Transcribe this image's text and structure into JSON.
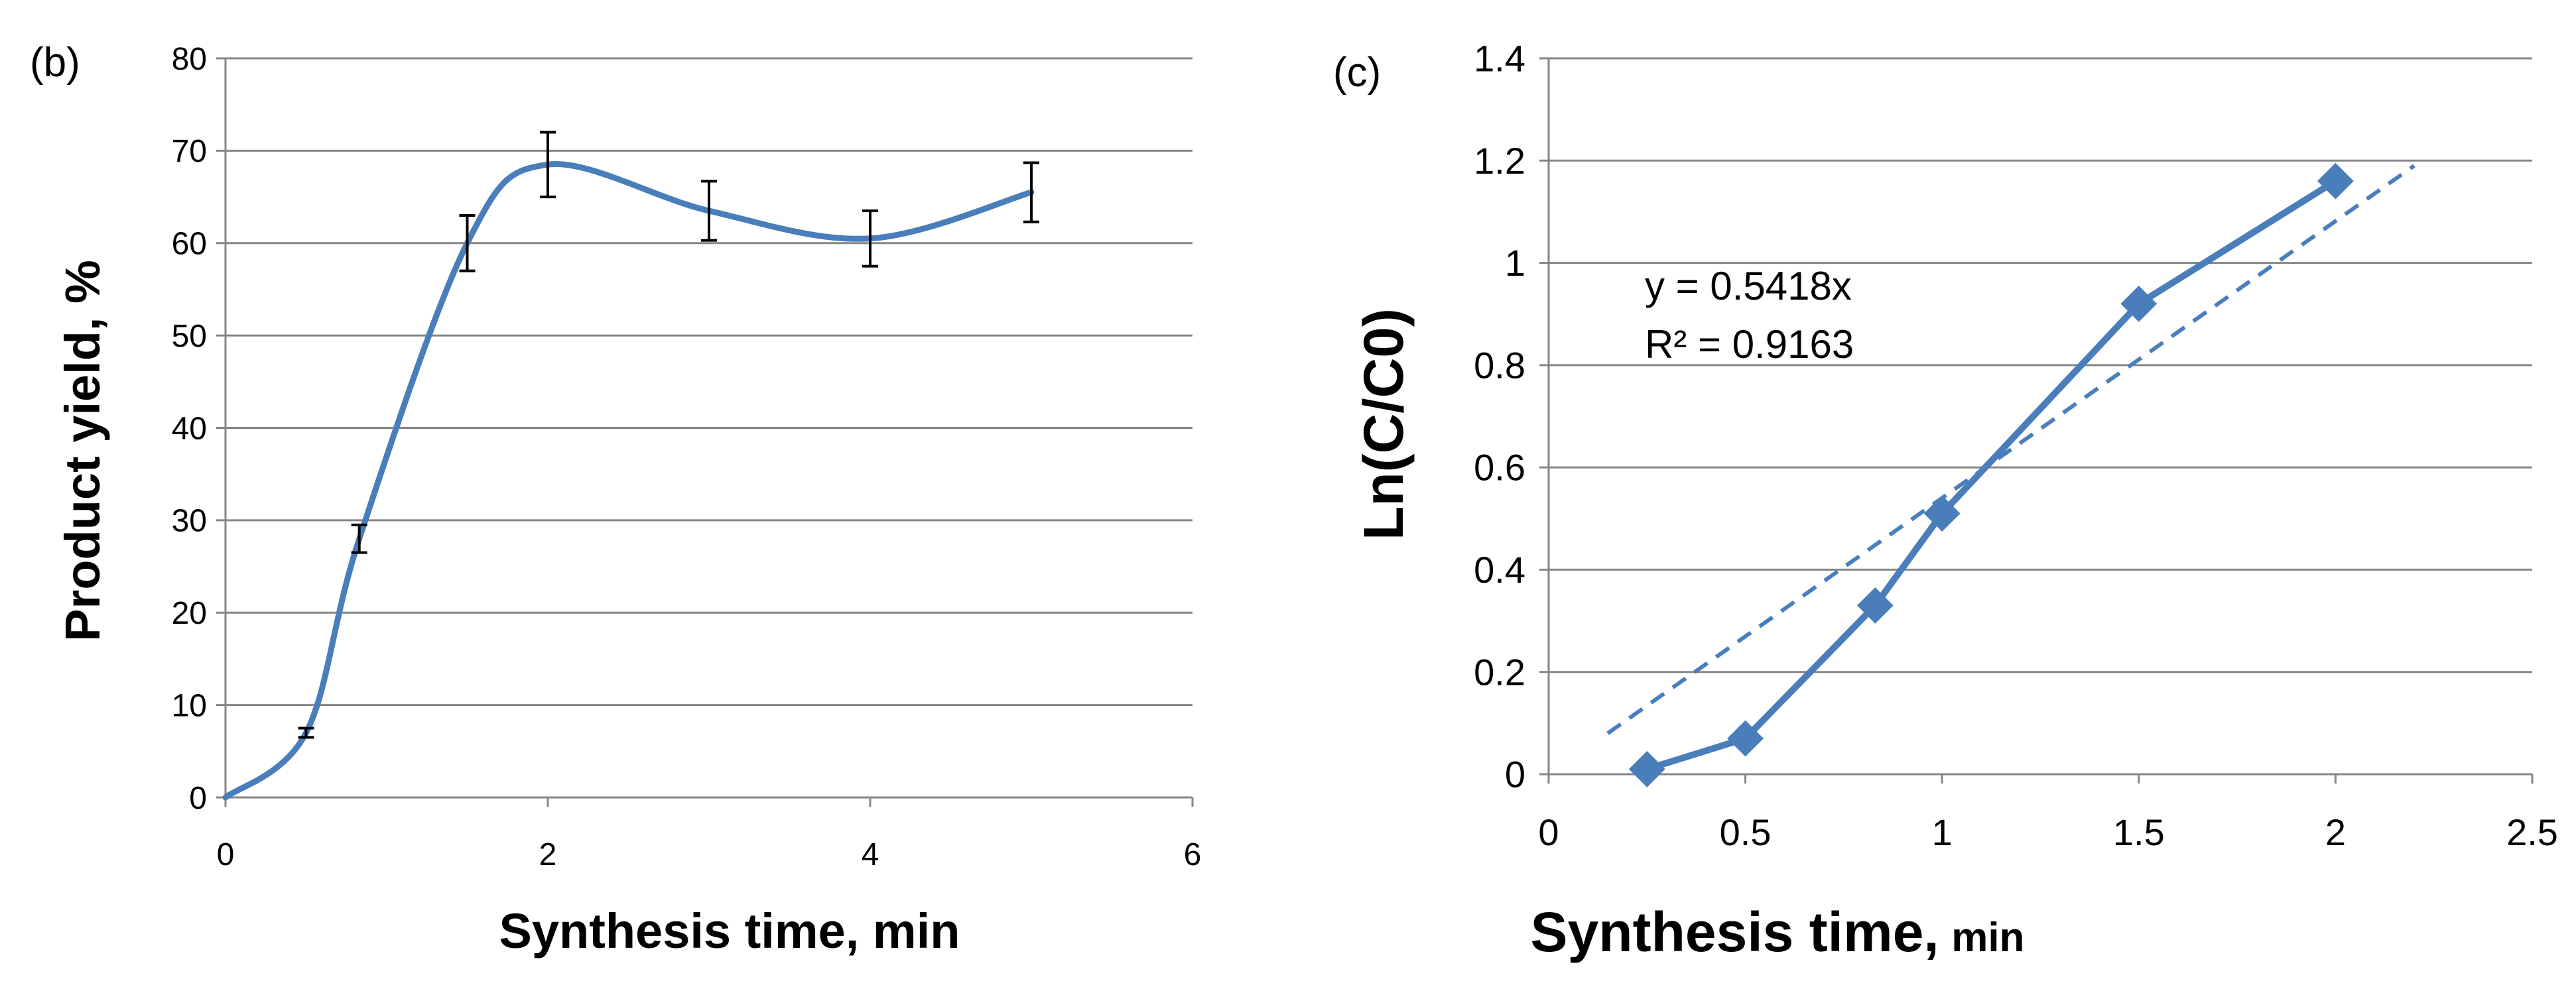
{
  "chart_data": [
    {
      "panel_label": "(b)",
      "type": "line",
      "title": "",
      "xlabel": "Synthesis time, min",
      "ylabel": "Product yield, %",
      "xlim": [
        0,
        6
      ],
      "ylim": [
        0,
        80
      ],
      "x_ticks": [
        0,
        2,
        4,
        6
      ],
      "y_ticks": [
        0,
        10,
        20,
        30,
        40,
        50,
        60,
        70,
        80
      ],
      "grid": "horizontal",
      "smooth": true,
      "series": [
        {
          "name": "Product yield",
          "color": "#4a7ebb",
          "x": [
            0,
            0.5,
            0.83,
            1.5,
            2,
            3,
            4,
            5
          ],
          "y": [
            0,
            7,
            28,
            60,
            68.5,
            63.5,
            60.5,
            65.5
          ],
          "error": [
            0,
            0.5,
            1.5,
            3,
            3.5,
            3.2,
            3,
            3.2
          ]
        }
      ]
    },
    {
      "panel_label": "(c)",
      "type": "line",
      "title": "",
      "xlabel": "Synthesis time,",
      "xlabel_unit": "min",
      "ylabel": "Ln(C/C0)",
      "xlim": [
        0,
        2.5
      ],
      "ylim": [
        0,
        1.4
      ],
      "x_ticks": [
        0,
        0.5,
        1,
        1.5,
        2,
        2.5
      ],
      "x_tick_labels": [
        "0",
        "0.5",
        "1",
        "1.5",
        "2",
        "2.5"
      ],
      "y_ticks": [
        0,
        0.2,
        0.4,
        0.6,
        0.8,
        1,
        1.2,
        1.4
      ],
      "y_tick_labels": [
        "0",
        "0.2",
        "0.4",
        "0.6",
        "0.8",
        "1",
        "1.2",
        "1.4"
      ],
      "grid": "horizontal",
      "series": [
        {
          "name": "Ln(C/C0)",
          "color": "#4a7ebb",
          "marker": "diamond",
          "x": [
            0.25,
            0.5,
            0.83,
            1,
            1.5,
            2
          ],
          "y": [
            0.01,
            0.07,
            0.33,
            0.51,
            0.92,
            1.16
          ]
        }
      ],
      "trendline": {
        "style": "dashed",
        "color": "#4a7ebb",
        "x": [
          0.15,
          2.2
        ],
        "y": [
          0.08,
          1.19
        ]
      },
      "annotations": [
        "y = 0.5418x",
        "R² = 0.9163"
      ]
    }
  ]
}
